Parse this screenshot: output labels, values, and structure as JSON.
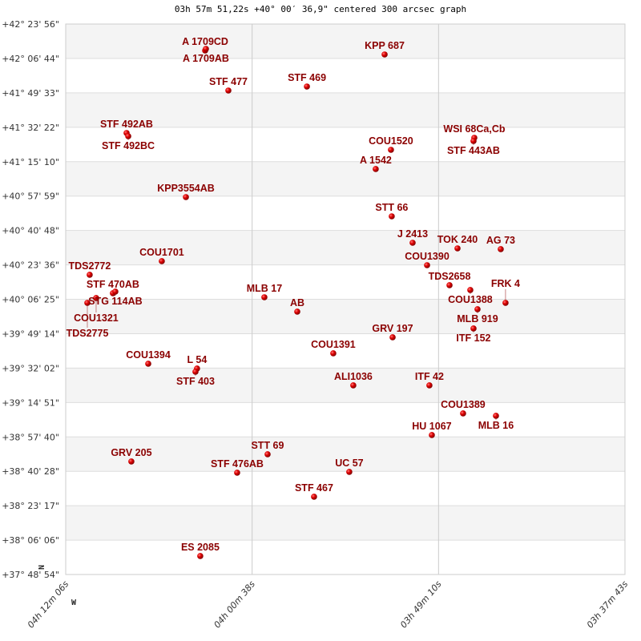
{
  "chart_data": {
    "type": "scatter",
    "title": "03h 57m 51,22s +40° 00′ 36,9\" centered 300 arcsec graph",
    "xlabel": "",
    "ylabel": "",
    "x_quantity": "right ascension (hours)",
    "y_quantity": "declination (degrees)",
    "xlim": [
      4.20167,
      3.62861
    ],
    "ylim": [
      37.815,
      42.3989
    ],
    "x_reversed": true,
    "grid": true,
    "x_ticks": [
      "04h 12m 06s",
      "04h 00m 38s",
      "03h 49m 10s",
      "03h 37m 43s"
    ],
    "y_ticks": [
      "+42° 23' 56\"",
      "+42° 06' 44\"",
      "+41° 49' 33\"",
      "+41° 32' 22\"",
      "+41° 15' 10\"",
      "+40° 57' 59\"",
      "+40° 40' 48\"",
      "+40° 23' 36\"",
      "+40° 06' 25\"",
      "+39° 49' 14\"",
      "+39° 32' 02\"",
      "+39° 14' 51\"",
      "+38° 57' 40\"",
      "+38° 40' 28\"",
      "+38° 23' 17\"",
      "+38° 06' 06\"",
      "+37° 48' 54\""
    ],
    "compass": {
      "north": "N",
      "west": "W"
    },
    "colors": {
      "label": "#8b0000",
      "point": "#dd0000",
      "band": "#f4f4f4",
      "grid": "#cccccc"
    },
    "points": [
      {
        "label": "A  1709CD",
        "ra": 4.0588,
        "dec": 42.1787
      },
      {
        "label": "A  1709AB",
        "ra": 4.058,
        "dec": 42.1921
      },
      {
        "label": "KPP 687",
        "ra": 3.8749,
        "dec": 42.1454
      },
      {
        "label": "STF 477",
        "ra": 4.035,
        "dec": 41.8451
      },
      {
        "label": "STF 469",
        "ra": 3.9545,
        "dec": 41.8785
      },
      {
        "label": "STF 492AB",
        "ra": 4.1393,
        "dec": 41.4915
      },
      {
        "label": "STF 492BC",
        "ra": 4.1376,
        "dec": 41.4648
      },
      {
        "label": "WSI 68Ca,Cb",
        "ra": 3.783,
        "dec": 41.4515
      },
      {
        "label": "STF 443AB",
        "ra": 3.7838,
        "dec": 41.4248
      },
      {
        "label": "COU1520",
        "ra": 3.8684,
        "dec": 41.3514
      },
      {
        "label": "A  1542",
        "ra": 3.884,
        "dec": 41.1913
      },
      {
        "label": "KPP3554AB",
        "ra": 4.0785,
        "dec": 40.9577
      },
      {
        "label": "STT  66",
        "ra": 3.8676,
        "dec": 40.7976
      },
      {
        "label": "J  2413",
        "ra": 3.8462,
        "dec": 40.5774
      },
      {
        "label": "TOK 240",
        "ra": 3.8002,
        "dec": 40.5307
      },
      {
        "label": "AG   73",
        "ra": 3.7559,
        "dec": 40.5241
      },
      {
        "label": "COU1390",
        "ra": 3.8314,
        "dec": 40.3906
      },
      {
        "label": "COU1701",
        "ra": 4.1032,
        "dec": 40.424
      },
      {
        "label": "TDS2772",
        "ra": 4.1771,
        "dec": 40.3106
      },
      {
        "label": "STF 470AB",
        "ra": 4.1533,
        "dec": 40.1571
      },
      {
        "label": "STG 114AB",
        "ra": 4.1508,
        "dec": 40.1705
      },
      {
        "label": "COU1321",
        "ra": 4.1705,
        "dec": 40.1171
      },
      {
        "label": "TDS2775",
        "ra": 4.1795,
        "dec": 40.077
      },
      {
        "label": "TDS2658",
        "ra": 3.8084,
        "dec": 40.2238
      },
      {
        "label": "COU1388",
        "ra": 3.7871,
        "dec": 40.1838
      },
      {
        "label": "MLB  17",
        "ra": 3.9981,
        "dec": 40.1237
      },
      {
        "label": "AB",
        "ra": 3.9644,
        "dec": 40.0037
      },
      {
        "label": "MLB 919",
        "ra": 3.7797,
        "dec": 40.0237
      },
      {
        "label": "FRK   4",
        "ra": 3.751,
        "dec": 40.077
      },
      {
        "label": "ITF 152",
        "ra": 3.7838,
        "dec": 39.8635
      },
      {
        "label": "GRV 197",
        "ra": 3.8667,
        "dec": 39.7901
      },
      {
        "label": "COU1391",
        "ra": 3.9275,
        "dec": 39.6567
      },
      {
        "label": "COU1394",
        "ra": 4.1171,
        "dec": 39.57
      },
      {
        "label": "L    54",
        "ra": 4.0671,
        "dec": 39.5299
      },
      {
        "label": "STF 403",
        "ra": 4.0687,
        "dec": 39.5033
      },
      {
        "label": "ALI1036",
        "ra": 3.907,
        "dec": 39.3898
      },
      {
        "label": "ITF  42",
        "ra": 3.829,
        "dec": 39.3898
      },
      {
        "label": "COU1389",
        "ra": 3.7945,
        "dec": 39.1563
      },
      {
        "label": "MLB  16",
        "ra": 3.7608,
        "dec": 39.1363
      },
      {
        "label": "HU 1067",
        "ra": 3.8265,
        "dec": 38.9762
      },
      {
        "label": "STT  69",
        "ra": 3.9948,
        "dec": 38.816
      },
      {
        "label": "GRV 205",
        "ra": 4.1344,
        "dec": 38.756
      },
      {
        "label": "STF 476AB",
        "ra": 4.026,
        "dec": 38.6626
      },
      {
        "label": "UC   57",
        "ra": 3.9111,
        "dec": 38.6693
      },
      {
        "label": "STF 467",
        "ra": 3.9472,
        "dec": 38.4624
      },
      {
        "label": "ES 2085",
        "ra": 4.0638,
        "dec": 37.9687
      }
    ]
  }
}
